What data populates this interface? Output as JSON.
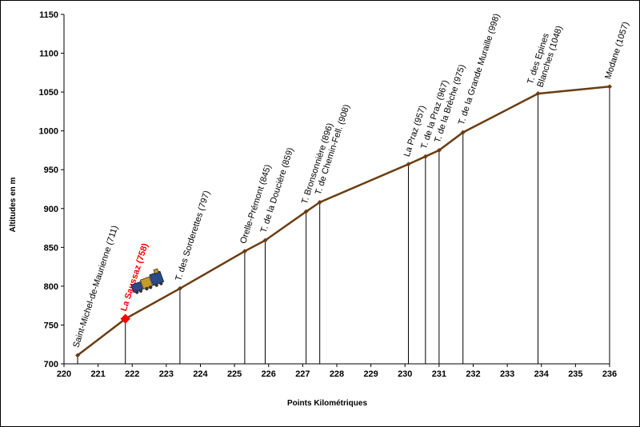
{
  "chart_data": {
    "type": "line",
    "xlabel": "Points Kilométriques",
    "ylabel": "Altitudes en m",
    "xlim": [
      220,
      236
    ],
    "ylim": [
      700,
      1150
    ],
    "xticks": [
      "220",
      "221",
      "222",
      "223",
      "224",
      "225",
      "226",
      "227",
      "228",
      "229",
      "230",
      "231",
      "232",
      "233",
      "234",
      "235",
      "236"
    ],
    "yticks": [
      "700",
      "750",
      "800",
      "850",
      "900",
      "950",
      "1000",
      "1050",
      "1100",
      "1150"
    ],
    "grid": false,
    "line_color": "#6b3d12",
    "highlight_color": "#ff0000",
    "points": [
      {
        "x": 220.4,
        "y": 711,
        "label": "Saint-Michel-de-Maurienne (711)"
      },
      {
        "x": 221.8,
        "y": 758,
        "label": "La Saussaz (758)",
        "highlight": true
      },
      {
        "x": 223.4,
        "y": 797,
        "label": "T. des Sorderettes (797)"
      },
      {
        "x": 225.3,
        "y": 845,
        "label": "Orelle-Prémont  (845)"
      },
      {
        "x": 225.9,
        "y": 859,
        "label": "T. de la Doucière (859)"
      },
      {
        "x": 227.1,
        "y": 896,
        "label": "T. Bronsonnière (896)"
      },
      {
        "x": 227.5,
        "y": 908,
        "label": "T. de Chemin-Fell. (908)"
      },
      {
        "x": 230.1,
        "y": 957,
        "label": "La Praz  (957)"
      },
      {
        "x": 230.6,
        "y": 967,
        "label": "T. de la Praz (967)"
      },
      {
        "x": 231.0,
        "y": 975,
        "label": "T. de la Brèche  (975)"
      },
      {
        "x": 231.7,
        "y": 998,
        "label": "T. de la Grande Muraille (998)"
      },
      {
        "x": 233.9,
        "y": 1048,
        "label": "T. des Epines",
        "label2": "Blanches (1048)"
      },
      {
        "x": 236.0,
        "y": 1057,
        "label": "Modane (1057)"
      }
    ],
    "icons": [
      "train-icon"
    ]
  }
}
